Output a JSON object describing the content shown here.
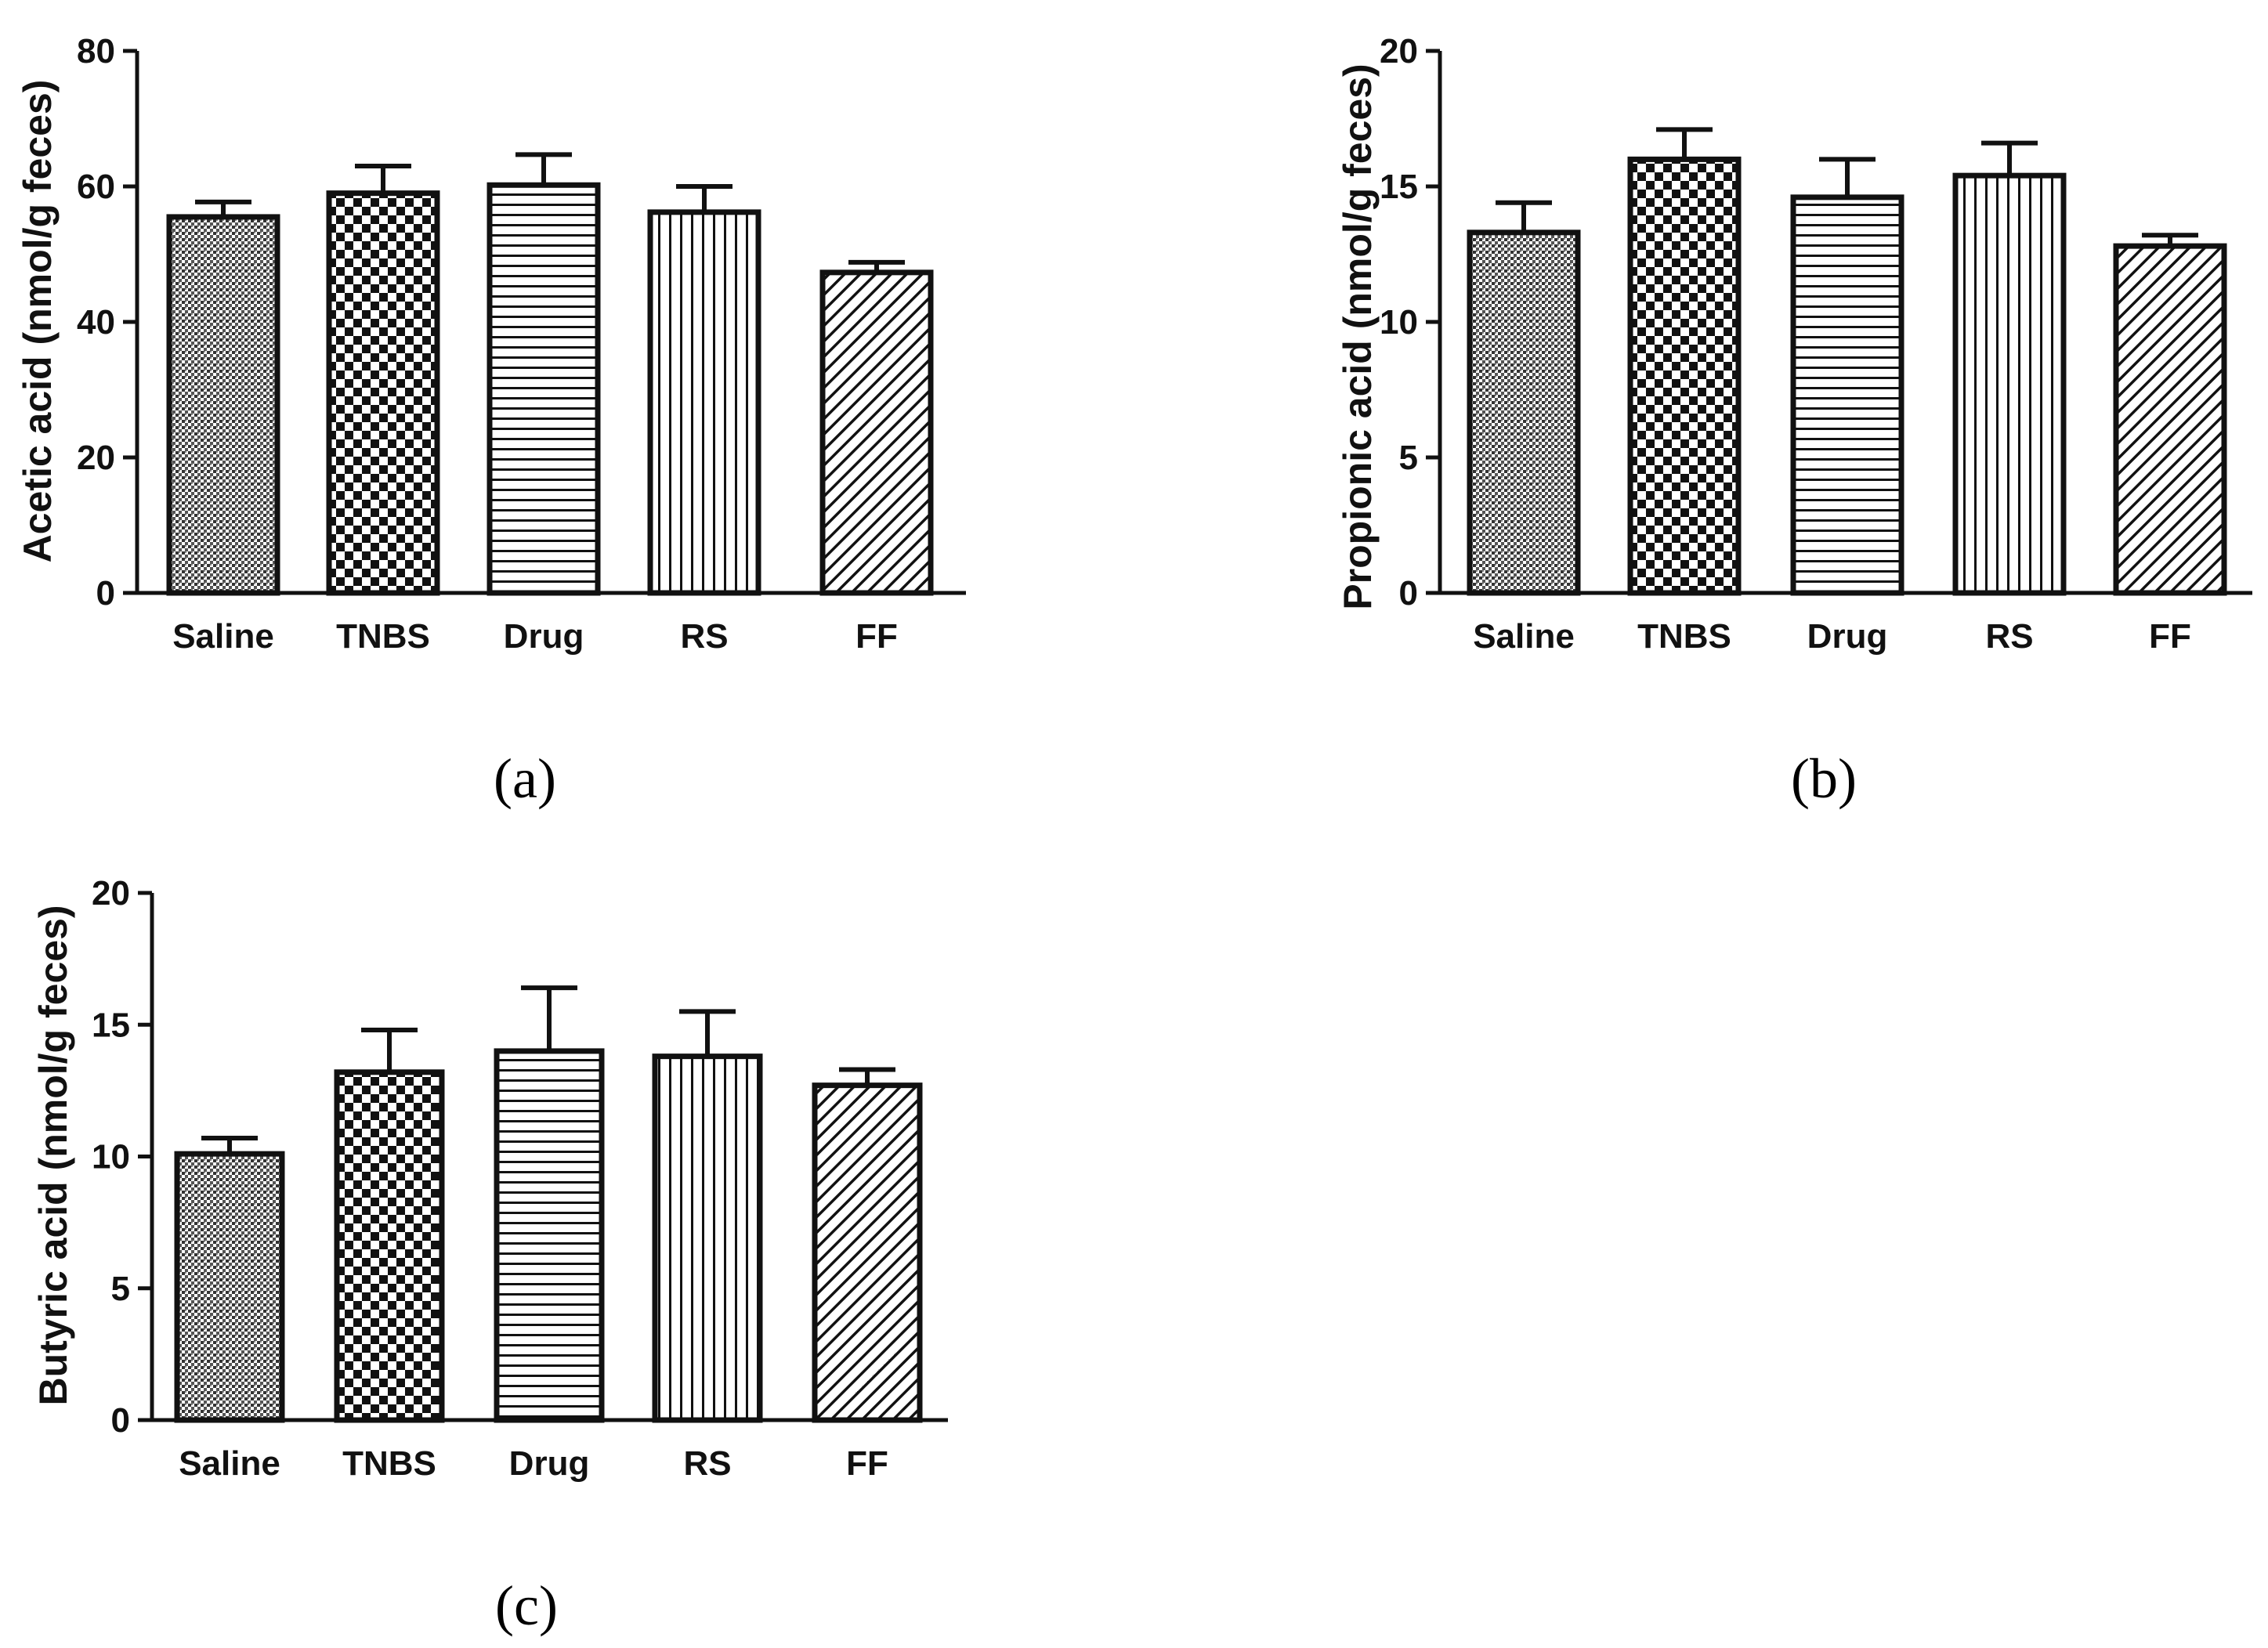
{
  "chart_data": [
    {
      "type": "bar",
      "panel_label": "(a)",
      "title": "",
      "xlabel": "",
      "ylabel": "Acetic acid (nmol/g feces)",
      "ylim": [
        0,
        80
      ],
      "yticks": [
        0,
        20,
        40,
        60,
        80
      ],
      "categories": [
        "Saline",
        "TNBS",
        "Drug",
        "RS",
        "FF"
      ],
      "values": [
        55.5,
        59.0,
        60.2,
        56.2,
        47.3
      ],
      "errors": [
        2.2,
        4.0,
        4.5,
        3.8,
        1.5
      ],
      "patterns": [
        "dots",
        "checker",
        "hlines",
        "vlines",
        "diag"
      ]
    },
    {
      "type": "bar",
      "panel_label": "(b)",
      "title": "",
      "xlabel": "",
      "ylabel": "Propionic acid (nmol/g feces)",
      "ylim": [
        0,
        20
      ],
      "yticks": [
        0,
        5,
        10,
        15,
        20
      ],
      "categories": [
        "Saline",
        "TNBS",
        "Drug",
        "RS",
        "FF"
      ],
      "values": [
        13.3,
        16.0,
        14.6,
        15.4,
        12.8
      ],
      "errors": [
        1.1,
        1.1,
        1.4,
        1.2,
        0.4
      ],
      "patterns": [
        "dots",
        "checker",
        "hlines",
        "vlines",
        "diag"
      ]
    },
    {
      "type": "bar",
      "panel_label": "(c)",
      "title": "",
      "xlabel": "",
      "ylabel": "Butyric acid (nmol/g feces)",
      "ylim": [
        0,
        20
      ],
      "yticks": [
        0,
        5,
        10,
        15,
        20
      ],
      "categories": [
        "Saline",
        "TNBS",
        "Drug",
        "RS",
        "FF"
      ],
      "values": [
        10.1,
        13.2,
        14.0,
        13.8,
        12.7
      ],
      "errors": [
        0.6,
        1.6,
        2.4,
        1.7,
        0.6
      ],
      "patterns": [
        "dots",
        "checker",
        "hlines",
        "vlines",
        "diag"
      ]
    }
  ]
}
